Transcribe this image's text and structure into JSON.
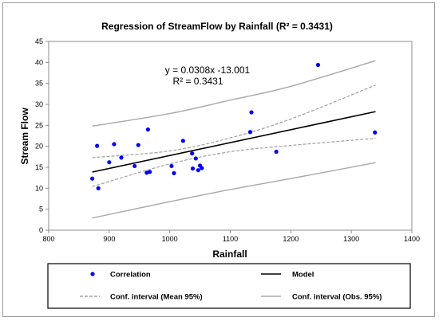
{
  "chart_data": {
    "type": "scatter",
    "title": "Regression of StreamFlow by Rainfall (R² = 0.3431)",
    "xlabel": "Rainfall",
    "ylabel": "Stream Flow",
    "xlim": [
      800,
      1400
    ],
    "ylim": [
      0,
      45
    ],
    "xticks": [
      800,
      900,
      1000,
      1100,
      1200,
      1300,
      1400
    ],
    "yticks": [
      0,
      5,
      10,
      15,
      20,
      25,
      30,
      35,
      40,
      45
    ],
    "grid": false,
    "equation": "y = 0.0308x -13.001",
    "r2_label": "R² = 0.3431",
    "colors": {
      "points": "#0000ff",
      "model": "#000000",
      "mean_ci": "#a0a0a0",
      "obs_ci": "#a8a8a8"
    },
    "points": [
      {
        "x": 872,
        "y": 12.3
      },
      {
        "x": 880,
        "y": 20.1
      },
      {
        "x": 882,
        "y": 10.0
      },
      {
        "x": 900,
        "y": 16.2
      },
      {
        "x": 908,
        "y": 20.5
      },
      {
        "x": 920,
        "y": 17.3
      },
      {
        "x": 942,
        "y": 15.3
      },
      {
        "x": 948,
        "y": 20.3
      },
      {
        "x": 962,
        "y": 13.7
      },
      {
        "x": 964,
        "y": 24.0
      },
      {
        "x": 967,
        "y": 13.9
      },
      {
        "x": 1003,
        "y": 15.3
      },
      {
        "x": 1007,
        "y": 13.6
      },
      {
        "x": 1022,
        "y": 21.3
      },
      {
        "x": 1037,
        "y": 18.3
      },
      {
        "x": 1038,
        "y": 14.7
      },
      {
        "x": 1043,
        "y": 17.1
      },
      {
        "x": 1047,
        "y": 14.3
      },
      {
        "x": 1050,
        "y": 15.4
      },
      {
        "x": 1053,
        "y": 14.8
      },
      {
        "x": 1133,
        "y": 23.4
      },
      {
        "x": 1135,
        "y": 28.1
      },
      {
        "x": 1176,
        "y": 18.7
      },
      {
        "x": 1245,
        "y": 39.4
      },
      {
        "x": 1339,
        "y": 23.3
      }
    ],
    "model": {
      "x": [
        872,
        1340
      ],
      "y": [
        13.86,
        28.27
      ]
    },
    "conf_mean_upper": {
      "x": [
        872,
        1000,
        1100,
        1200,
        1340
      ],
      "y": [
        17.3,
        18.9,
        22.0,
        26.5,
        34.6
      ]
    },
    "conf_mean_lower": {
      "x": [
        872,
        1000,
        1100,
        1200,
        1340
      ],
      "y": [
        10.4,
        15.8,
        18.7,
        20.2,
        21.9
      ]
    },
    "conf_obs_upper": {
      "x": [
        872,
        1000,
        1100,
        1200,
        1340
      ],
      "y": [
        24.8,
        27.8,
        31.0,
        34.3,
        40.4
      ]
    },
    "conf_obs_lower": {
      "x": [
        872,
        1000,
        1100,
        1200,
        1340
      ],
      "y": [
        2.9,
        6.8,
        9.7,
        12.3,
        16.1
      ]
    },
    "legend": {
      "placement": "bottom",
      "items": [
        {
          "label": "Correlation",
          "kind": "point"
        },
        {
          "label": "Model",
          "kind": "model"
        },
        {
          "label": "Conf. interval (Mean 95%)",
          "kind": "mean_ci"
        },
        {
          "label": "Conf. interval (Obs. 95%)",
          "kind": "obs_ci"
        }
      ]
    }
  }
}
